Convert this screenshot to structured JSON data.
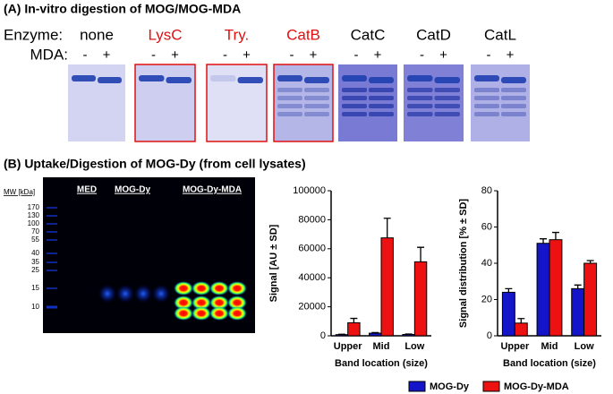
{
  "panel_a": {
    "title": "(A) In-vitro digestion of MOG/MOG-MDA",
    "enzyme_label": "Enzyme:",
    "mda_label": "MDA:",
    "minus": "-",
    "plus": "+",
    "enzymes": [
      {
        "name": "none",
        "color": "#000000"
      },
      {
        "name": "LysC",
        "color": "#e01010"
      },
      {
        "name": "Try.",
        "color": "#e01010"
      },
      {
        "name": "CatB",
        "color": "#e01010"
      },
      {
        "name": "CatC",
        "color": "#000000"
      },
      {
        "name": "CatD",
        "color": "#000000"
      },
      {
        "name": "CatL",
        "color": "#000000"
      }
    ]
  },
  "panel_b": {
    "title": "(B) Uptake/Digestion of MOG-Dy (from cell lysates)",
    "gel": {
      "mw_label": "MW [kDa]",
      "mw_markers": [
        170,
        130,
        100,
        70,
        55,
        40,
        35,
        25,
        15,
        10
      ],
      "lanes": [
        "MED",
        "MOG-Dy",
        "MOG-Dy-MDA"
      ]
    }
  },
  "chart_data": [
    {
      "type": "bar",
      "y_label": "Signal [AU ± SD]",
      "x_label": "Band location (size)",
      "categories": [
        "Upper",
        "Mid",
        "Low"
      ],
      "series": [
        {
          "name": "MOG-Dy",
          "color": "#1414c8",
          "values": [
            800,
            1800,
            900
          ],
          "errors": [
            300,
            400,
            300
          ]
        },
        {
          "name": "MOG-Dy-MDA",
          "color": "#ee1111",
          "values": [
            9000,
            67500,
            51000
          ],
          "errors": [
            3000,
            13500,
            10000
          ]
        }
      ],
      "ylim": [
        0,
        100000
      ],
      "yticks": [
        0,
        20000,
        40000,
        60000,
        80000,
        100000
      ]
    },
    {
      "type": "bar",
      "y_label": "Signal distribution [% ± SD]",
      "x_label": "Band location (size)",
      "categories": [
        "Upper",
        "Mid",
        "Low"
      ],
      "series": [
        {
          "name": "MOG-Dy",
          "color": "#1414c8",
          "values": [
            24,
            51,
            26
          ],
          "errors": [
            2,
            2.5,
            2
          ]
        },
        {
          "name": "MOG-Dy-MDA",
          "color": "#ee1111",
          "values": [
            7,
            53,
            40
          ],
          "errors": [
            2.5,
            4,
            1.5
          ]
        }
      ],
      "ylim": [
        0,
        80
      ],
      "yticks": [
        0,
        20,
        40,
        60,
        80
      ]
    }
  ]
}
